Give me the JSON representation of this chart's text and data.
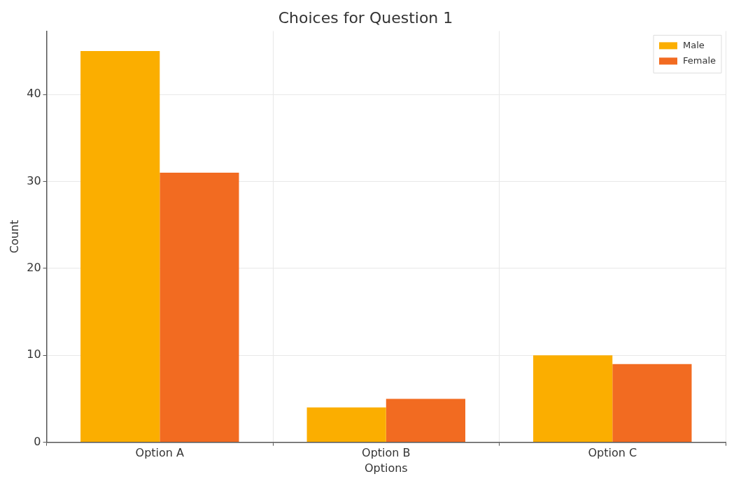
{
  "chart_data": {
    "type": "bar",
    "title": "Choices for Question 1",
    "xlabel": "Options",
    "ylabel": "Count",
    "categories": [
      "Option A",
      "Option B",
      "Option C"
    ],
    "series": [
      {
        "name": "Male",
        "color": "#fbae00",
        "values": [
          45,
          4,
          10
        ]
      },
      {
        "name": "Female",
        "color": "#f26b21",
        "values": [
          31,
          5,
          9
        ]
      }
    ],
    "ylim": [
      0,
      47.3
    ],
    "yticks": [
      0,
      10,
      20,
      30,
      40
    ],
    "grid": true,
    "legend": "top right"
  }
}
